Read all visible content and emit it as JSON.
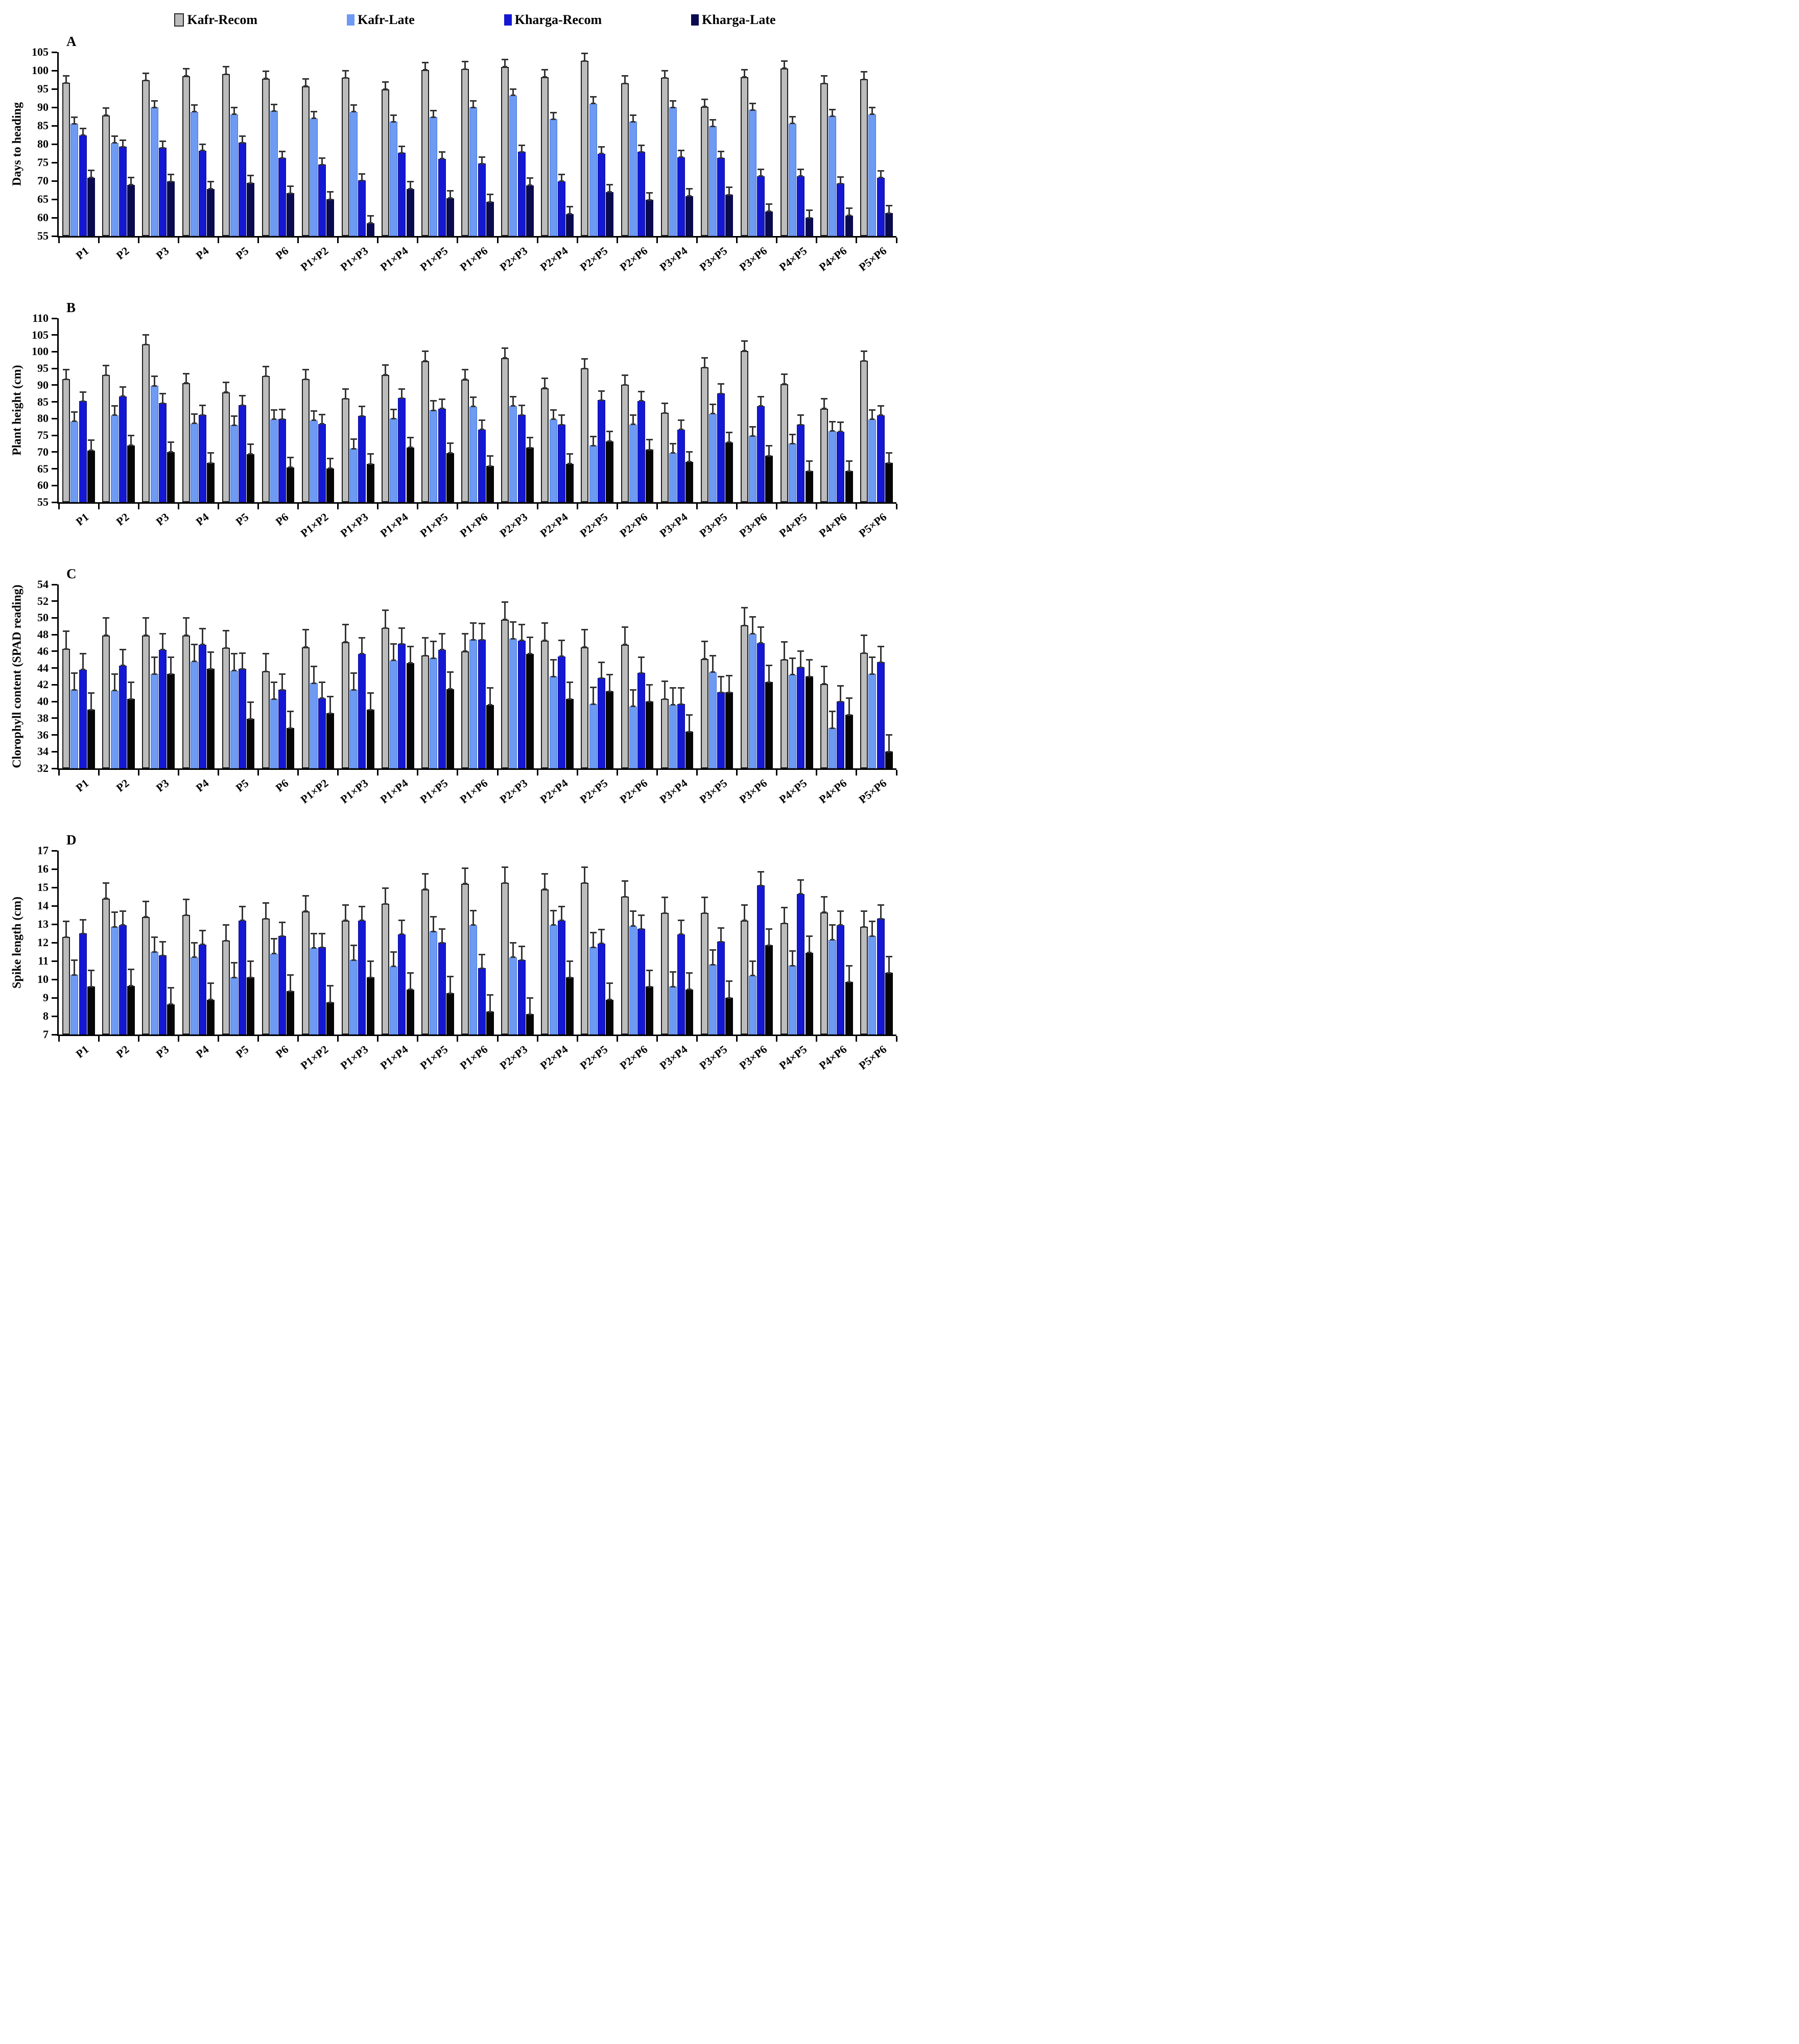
{
  "figure": {
    "background": "#ffffff"
  },
  "legend": {
    "items": [
      {
        "label": "Kafr-Recom",
        "color": "#bcbcbc",
        "border": "#2a2a2a"
      },
      {
        "label": "Kafr-Late",
        "color": "#6d9af3",
        "border": "#6d9af3"
      },
      {
        "label": "Kharga-Recom",
        "color": "#1418d2",
        "border": "#1418d2"
      },
      {
        "label": "Kharga-Late",
        "color": "#0a0a4e",
        "border": "#0a0a4e"
      }
    ]
  },
  "chart_data": [
    {
      "panel": "A",
      "type": "bar",
      "ylabel": "Days to heading",
      "ylim": [
        55,
        105
      ],
      "ytick_step": 5,
      "grid": false,
      "legend_position": "top",
      "categories": [
        "P1",
        "P2",
        "P3",
        "P4",
        "P5",
        "P6",
        "P1×P2",
        "P1×P3",
        "P1×P4",
        "P1×P5",
        "P1×P6",
        "P2×P3",
        "P2×P4",
        "P2×P5",
        "P2×P6",
        "P3×P4",
        "P3×P5",
        "P3×P6",
        "P4×P5",
        "P4×P6",
        "P5×P6"
      ],
      "series": [
        {
          "name": "Kafr-Recom",
          "color": "#bcbcbc",
          "border": "#1c1c1c",
          "err": 2.0,
          "values": [
            96.6,
            87.8,
            97.3,
            98.5,
            99.0,
            97.8,
            95.7,
            98.0,
            94.9,
            100.2,
            100.4,
            101.0,
            98.2,
            102.6,
            96.5,
            98.0,
            90.2,
            98.2,
            100.6,
            96.5,
            97.6
          ]
        },
        {
          "name": "Kafr-Late",
          "color": "#6d9af3",
          "border": "#4a73cf",
          "err": 1.8,
          "values": [
            85.5,
            80.3,
            90.0,
            88.8,
            88.1,
            89.0,
            87.0,
            88.8,
            86.1,
            87.3,
            90.0,
            93.2,
            86.8,
            91.0,
            86.1,
            90.0,
            84.8,
            89.3,
            85.6,
            87.6,
            88.1
          ]
        },
        {
          "name": "Kharga-Recom",
          "color": "#1418d2",
          "border": "#0b0e8f",
          "err": 1.8,
          "values": [
            82.4,
            79.3,
            79.0,
            78.2,
            80.4,
            76.2,
            74.4,
            70.1,
            77.6,
            76.0,
            74.7,
            77.9,
            69.9,
            77.4,
            77.9,
            76.4,
            76.2,
            71.3,
            71.3,
            69.3,
            70.9
          ]
        },
        {
          "name": "Kharga-Late",
          "color": "#0a0a4e",
          "border": "#0a0a4e",
          "err": 2.0,
          "values": [
            70.9,
            68.9,
            69.8,
            67.8,
            69.4,
            66.6,
            65.0,
            58.5,
            67.8,
            65.3,
            64.3,
            68.8,
            61.0,
            67.0,
            64.8,
            65.9,
            66.2,
            61.7,
            60.0,
            60.6,
            61.2
          ]
        }
      ]
    },
    {
      "panel": "B",
      "type": "bar",
      "ylabel": "Plant height (cm)",
      "ylim": [
        55,
        110
      ],
      "ytick_step": 5,
      "grid": false,
      "categories": [
        "P1",
        "P2",
        "P3",
        "P4",
        "P5",
        "P6",
        "P1×P2",
        "P1×P3",
        "P1×P4",
        "P1×P5",
        "P1×P6",
        "P2×P3",
        "P2×P4",
        "P2×P5",
        "P2×P6",
        "P3×P4",
        "P3×P5",
        "P3×P6",
        "P4×P5",
        "P4×P6",
        "P5×P6"
      ],
      "series": [
        {
          "name": "Kafr-Recom",
          "color": "#bcbcbc",
          "border": "#1c1c1c",
          "err": 2.9,
          "values": [
            91.8,
            93.0,
            102.2,
            90.6,
            87.9,
            92.7,
            91.8,
            86.0,
            93.1,
            97.2,
            91.7,
            98.1,
            89.1,
            95.0,
            90.1,
            81.7,
            95.3,
            100.3,
            90.3,
            83.0,
            97.3
          ]
        },
        {
          "name": "Kafr-Late",
          "color": "#6d9af3",
          "border": "#4a73cf",
          "err": 2.8,
          "values": [
            79.2,
            81.0,
            89.8,
            78.6,
            78.0,
            79.8,
            79.5,
            71.0,
            80.0,
            82.5,
            83.6,
            83.8,
            79.8,
            71.9,
            78.3,
            69.7,
            81.5,
            74.8,
            72.5,
            76.3,
            79.8
          ]
        },
        {
          "name": "Kharga-Recom",
          "color": "#1418d2",
          "border": "#0b0e8f",
          "err": 2.8,
          "values": [
            85.2,
            86.7,
            84.6,
            81.1,
            84.0,
            79.9,
            78.4,
            80.8,
            86.1,
            83.0,
            76.7,
            81.1,
            78.2,
            85.5,
            85.3,
            76.7,
            87.5,
            83.8,
            78.2,
            76.1,
            81.0
          ]
        },
        {
          "name": "Kharga-Late",
          "color": "#060606",
          "border": "#060606",
          "err": 3.0,
          "values": [
            70.5,
            72.0,
            70.0,
            66.7,
            69.4,
            65.4,
            65.1,
            66.4,
            71.4,
            69.7,
            65.8,
            71.3,
            66.5,
            73.2,
            70.7,
            67.1,
            72.9,
            68.9,
            64.3,
            64.3,
            66.7
          ]
        }
      ]
    },
    {
      "panel": "C",
      "type": "bar",
      "ylabel": "Clorophyll  content (SPAD reading)",
      "ylim": [
        32,
        54
      ],
      "ytick_step": 2,
      "grid": false,
      "categories": [
        "P1",
        "P2",
        "P3",
        "P4",
        "P5",
        "P6",
        "P1×P2",
        "P1×P3",
        "P1×P4",
        "P1×P5",
        "P1×P6",
        "P2×P3",
        "P2×P4",
        "P2×P5",
        "P2×P6",
        "P3×P4",
        "P3×P5",
        "P3×P6",
        "P4×P5",
        "P4×P6",
        "P5×P6"
      ],
      "series": [
        {
          "name": "Kafr-Recom",
          "color": "#bcbcbc",
          "border": "#1c1c1c",
          "err": 2.1,
          "values": [
            46.3,
            47.9,
            47.9,
            47.9,
            46.4,
            43.6,
            46.5,
            47.1,
            48.8,
            45.5,
            46.0,
            49.8,
            47.3,
            46.5,
            46.8,
            40.3,
            45.1,
            49.1,
            45.0,
            42.1,
            45.8
          ]
        },
        {
          "name": "Kafr-Late",
          "color": "#6d9af3",
          "border": "#4a73cf",
          "err": 2.0,
          "values": [
            41.4,
            41.3,
            43.3,
            44.8,
            43.7,
            40.3,
            42.2,
            41.4,
            44.9,
            45.2,
            47.4,
            47.5,
            43.0,
            39.7,
            39.4,
            39.6,
            43.5,
            48.1,
            43.2,
            36.8,
            43.3
          ]
        },
        {
          "name": "Kharga-Recom",
          "color": "#1418d2",
          "border": "#0b0e8f",
          "err": 1.9,
          "values": [
            43.8,
            44.3,
            46.2,
            46.8,
            43.9,
            41.4,
            40.4,
            45.7,
            46.9,
            46.2,
            47.4,
            47.3,
            45.4,
            42.8,
            43.4,
            39.7,
            41.1,
            47.0,
            44.1,
            40.0,
            44.7
          ]
        },
        {
          "name": "Kharga-Late",
          "color": "#060606",
          "border": "#060606",
          "err": 2.0,
          "values": [
            39.0,
            40.3,
            43.3,
            43.9,
            37.9,
            36.8,
            38.6,
            39.0,
            44.6,
            41.5,
            39.6,
            45.7,
            40.3,
            41.2,
            40.0,
            36.4,
            41.1,
            42.3,
            43.0,
            38.4,
            34.0
          ]
        }
      ]
    },
    {
      "panel": "D",
      "type": "bar",
      "ylabel": "Spike length (cm)",
      "ylim": [
        7,
        17
      ],
      "ytick_step": 1,
      "grid": false,
      "categories": [
        "P1",
        "P2",
        "P3",
        "P4",
        "P5",
        "P6",
        "P1×P2",
        "P1×P3",
        "P1×P4",
        "P1×P5",
        "P1×P6",
        "P2×P3",
        "P2×P4",
        "P2×P5",
        "P2×P6",
        "P3×P4",
        "P3×P5",
        "P3×P6",
        "P4×P5",
        "P4×P6",
        "P5×P6"
      ],
      "series": [
        {
          "name": "Kafr-Recom",
          "color": "#bcbcbc",
          "border": "#1c1c1c",
          "err": 0.85,
          "values": [
            12.3,
            14.4,
            13.4,
            13.5,
            12.1,
            13.3,
            13.7,
            13.2,
            14.1,
            14.9,
            15.2,
            15.25,
            14.9,
            15.25,
            14.5,
            13.6,
            13.6,
            13.2,
            13.05,
            13.65,
            12.85
          ]
        },
        {
          "name": "Kafr-Late",
          "color": "#6d9af3",
          "border": "#4a73cf",
          "err": 0.8,
          "values": [
            10.25,
            12.85,
            11.5,
            11.2,
            10.1,
            11.4,
            11.7,
            11.05,
            10.7,
            12.6,
            12.95,
            11.2,
            12.95,
            11.75,
            12.9,
            9.6,
            10.8,
            10.2,
            10.75,
            12.15,
            12.35
          ]
        },
        {
          "name": "Kharga-Recom",
          "color": "#1418d2",
          "border": "#0b0e8f",
          "err": 0.75,
          "values": [
            12.5,
            12.95,
            11.3,
            11.9,
            13.2,
            12.35,
            11.75,
            13.2,
            12.45,
            12.0,
            10.6,
            11.05,
            13.2,
            11.95,
            12.75,
            12.45,
            12.05,
            15.1,
            14.65,
            12.95,
            13.3
          ]
        },
        {
          "name": "Kharga-Late",
          "color": "#060606",
          "border": "#060606",
          "err": 0.9,
          "values": [
            9.6,
            9.65,
            8.65,
            8.9,
            10.1,
            9.35,
            8.75,
            10.1,
            9.45,
            9.25,
            8.25,
            8.1,
            10.1,
            8.9,
            9.6,
            9.45,
            9.0,
            11.85,
            11.45,
            9.85,
            10.35
          ]
        }
      ]
    }
  ]
}
